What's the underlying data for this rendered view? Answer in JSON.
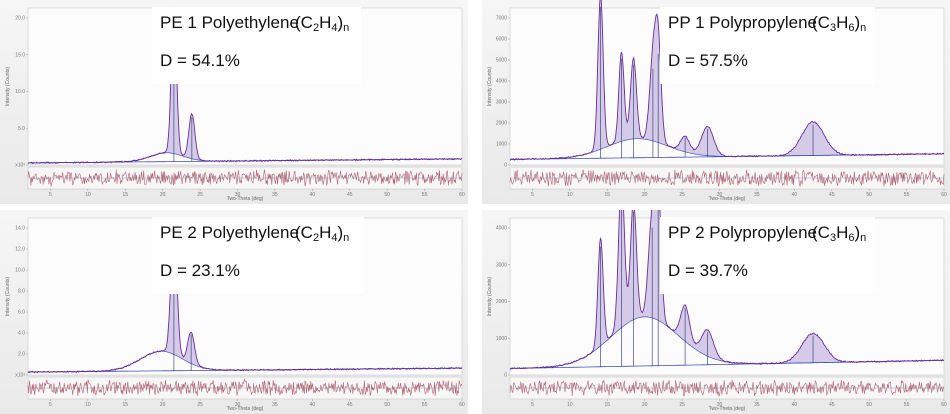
{
  "chart_data": [
    {
      "type": "line",
      "name_text": "PE 1 Polyethylene",
      "formula": {
        "c_sub": "2",
        "h_sub": "4",
        "n_sub": "n"
      },
      "d_text": "D = 54.1%",
      "xlabel": "Two-Theta (deg)",
      "ylabel": "Intensity (Counts)",
      "x_ticks": [
        5,
        10,
        15,
        20,
        25,
        30,
        35,
        40,
        45,
        50,
        55,
        60
      ],
      "y_ticks": [
        "x10³",
        "5.0",
        "10.0",
        "15.0",
        "20.0"
      ],
      "xlim": [
        2,
        60
      ],
      "ylim": [
        0,
        23
      ],
      "peaks": [
        {
          "x": 21.5,
          "h": 21.6,
          "w": 0.35
        },
        {
          "x": 23.9,
          "h": 6.6,
          "w": 0.4
        }
      ],
      "hump": {
        "x": 20.5,
        "h": 1.3,
        "w": 2.2
      },
      "background": [
        0.3,
        0.9
      ],
      "colors": {
        "profile": "#6a2c9a",
        "fill": "#c5b6df",
        "residual": "#b0606c",
        "background": "#3f51b5"
      }
    },
    {
      "type": "line",
      "name_text": "PP 1 Polypropylene",
      "formula": {
        "c_sub": "3",
        "h_sub": "6",
        "n_sub": "n"
      },
      "d_text": "D = 57.5%",
      "xlabel": "Two-Theta (deg)",
      "ylabel": "Intensity (Counts)",
      "x_ticks": [
        5,
        10,
        15,
        20,
        25,
        30,
        35,
        40,
        45,
        50,
        55,
        60
      ],
      "y_ticks": [
        "0",
        "1000",
        "2000",
        "3000",
        "4000",
        "5000",
        "6000",
        "7000"
      ],
      "xlim": [
        2,
        60
      ],
      "ylim": [
        0,
        7000
      ],
      "peaks": [
        {
          "x": 14.1,
          "h": 6900,
          "w": 0.35
        },
        {
          "x": 16.9,
          "h": 4000,
          "w": 0.35
        },
        {
          "x": 18.5,
          "h": 3600,
          "w": 0.4
        },
        {
          "x": 21.1,
          "h": 3500,
          "w": 0.45
        },
        {
          "x": 21.8,
          "h": 4300,
          "w": 0.4
        },
        {
          "x": 25.4,
          "h": 700,
          "w": 0.6
        },
        {
          "x": 28.4,
          "h": 1300,
          "w": 0.8
        },
        {
          "x": 42.5,
          "h": 1500,
          "w": 1.5
        }
      ],
      "hump": {
        "x": 19.0,
        "h": 850,
        "w": 4.0
      },
      "background": [
        250,
        500
      ],
      "colors": {
        "profile": "#6a2c9a",
        "fill": "#c5b6df",
        "residual": "#b0606c",
        "background": "#3f51b5"
      }
    },
    {
      "type": "line",
      "name_text": "PE 2 Polyethylene",
      "formula": {
        "c_sub": "2",
        "h_sub": "4",
        "n_sub": "n"
      },
      "d_text": "D = 23.1%",
      "xlabel": "Two-Theta (deg)",
      "ylabel": "Intensity (Counts)",
      "x_ticks": [
        5,
        10,
        15,
        20,
        25,
        30,
        35,
        40,
        45,
        50,
        55,
        60
      ],
      "y_ticks": [
        "x10³",
        "2.0",
        "4.0",
        "6.0",
        "8.0",
        "10.0",
        "12.0",
        "14.0"
      ],
      "xlim": [
        2,
        60
      ],
      "ylim": [
        0,
        16
      ],
      "peaks": [
        {
          "x": 21.5,
          "h": 13.5,
          "w": 0.4
        },
        {
          "x": 23.8,
          "h": 3.2,
          "w": 0.45
        }
      ],
      "hump": {
        "x": 19.8,
        "h": 2.0,
        "w": 2.8
      },
      "background": [
        0.3,
        0.7
      ],
      "colors": {
        "profile": "#6a2c9a",
        "fill": "#c5b6df",
        "residual": "#b0606c",
        "background": "#3f51b5"
      }
    },
    {
      "type": "line",
      "name_text": "PP 2 Polypropylene",
      "formula": {
        "c_sub": "3",
        "h_sub": "6",
        "n_sub": "n"
      },
      "d_text": "D = 39.7%",
      "xlabel": "Two-Theta (deg)",
      "ylabel": "Intensity (Counts)",
      "x_ticks": [
        5,
        10,
        15,
        20,
        25,
        30,
        35,
        40,
        45,
        50,
        55,
        60
      ],
      "y_ticks": [
        "0",
        "1000",
        "2000",
        "3000",
        "4000"
      ],
      "xlim": [
        2,
        60
      ],
      "ylim": [
        0,
        4800
      ],
      "peaks": [
        {
          "x": 14.1,
          "h": 3300,
          "w": 0.35
        },
        {
          "x": 16.9,
          "h": 4500,
          "w": 0.4
        },
        {
          "x": 18.5,
          "h": 3600,
          "w": 0.4
        },
        {
          "x": 21.0,
          "h": 3000,
          "w": 0.5
        },
        {
          "x": 21.8,
          "h": 3700,
          "w": 0.4
        },
        {
          "x": 25.4,
          "h": 1100,
          "w": 0.6
        },
        {
          "x": 28.4,
          "h": 800,
          "w": 0.8
        },
        {
          "x": 42.5,
          "h": 900,
          "w": 1.5
        }
      ],
      "hump": {
        "x": 20.0,
        "h": 1500,
        "w": 4.5
      },
      "background": [
        200,
        450
      ],
      "colors": {
        "profile": "#6a2c9a",
        "fill": "#c5b6df",
        "residual": "#b0606c",
        "background": "#3f51b5"
      }
    }
  ]
}
